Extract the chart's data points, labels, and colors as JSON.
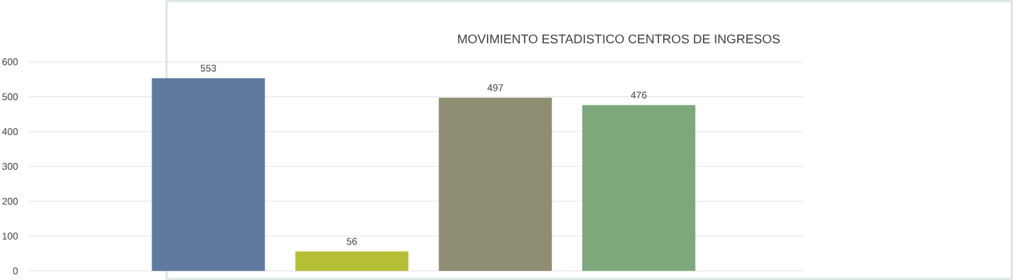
{
  "chart_data": {
    "type": "bar",
    "title": "MOVIMIENTO ESTADISTICO CENTROS DE INGRESOS",
    "categories": [
      null,
      null,
      null,
      null
    ],
    "values": [
      553,
      56,
      497,
      476
    ],
    "colors": [
      "#5f7a9e",
      "#b5bf36",
      "#8f8d72",
      "#7fa87d"
    ],
    "ylim": [
      0,
      600
    ],
    "yticks": [
      0,
      100,
      200,
      300,
      400,
      500,
      600
    ],
    "grid": "y",
    "data_labels": true
  }
}
